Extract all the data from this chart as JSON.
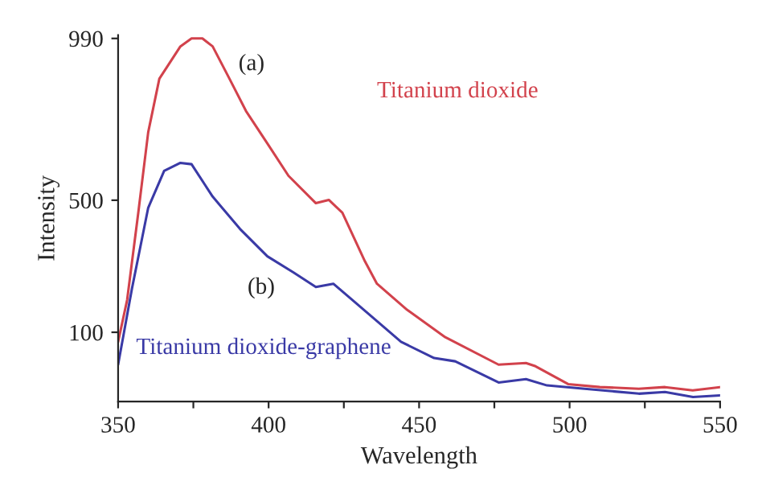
{
  "chart_data": {
    "type": "line",
    "xlabel": "Wavelength",
    "ylabel": "Intensity",
    "xlim": [
      350,
      550
    ],
    "xticks": [
      350,
      {
        "value": 375,
        "label": null
      },
      400,
      {
        "value": 425,
        "label": null
      },
      450,
      {
        "value": 475,
        "label": null
      },
      500,
      {
        "value": 525,
        "label": null
      },
      550
    ],
    "ylim": [
      -110,
      1000
    ],
    "yticks": [
      100,
      500,
      990
    ],
    "grid": false,
    "legend": false,
    "marker": "none",
    "line_style": "solid",
    "annotations": [
      "(a)",
      "(b)"
    ],
    "series": [
      {
        "name": "Titanium dioxide",
        "color": "#d2424c",
        "x": [
          350,
          353,
          356.7,
          360,
          363.7,
          370.7,
          374.4,
          378,
          381.4,
          387,
          392.5,
          399.6,
          406.6,
          415.7,
          420,
          424.5,
          432,
          436,
          446,
          458.7,
          476.4,
          485.5,
          488.7,
          499.5,
          510,
          523,
          531.7,
          540.9,
          550
        ],
        "values": [
          71,
          198,
          462,
          706,
          868,
          966,
          990,
          990,
          966,
          868,
          770,
          672,
          574,
          491,
          501,
          462,
          315,
          247,
          168,
          85,
          2,
          7,
          -3,
          -57,
          -66,
          -71,
          -66,
          -76,
          -66
        ]
      },
      {
        "name": "Titanium dioxide-graphene",
        "color": "#3a3aa6",
        "x": [
          350,
          354.6,
          360,
          365.3,
          370.7,
          374.4,
          381.4,
          390.5,
          399.6,
          408.3,
          415.7,
          421.5,
          426.5,
          436,
          444,
          455,
          462,
          476.4,
          485.5,
          492.5,
          505,
          523,
          531.7,
          541,
          550
        ],
        "values": [
          2,
          232,
          477,
          589,
          613,
          609,
          511,
          413,
          330,
          281,
          237,
          247,
          208,
          134,
          71,
          22,
          12,
          -52,
          -42,
          -61,
          -71,
          -86,
          -81,
          -96,
          -91
        ]
      }
    ]
  }
}
